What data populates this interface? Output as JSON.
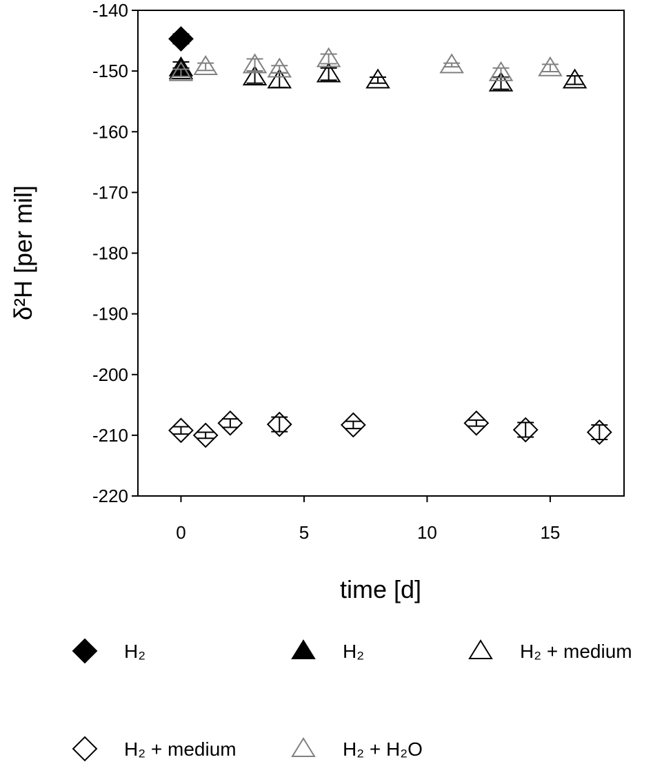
{
  "chart_data": {
    "type": "scatter",
    "xlabel": "time [d]",
    "ylabel": "δ²H [per mil]",
    "xlim": [
      -1.75,
      18
    ],
    "ylim": [
      -220,
      -140
    ],
    "xticks": [
      0,
      5,
      10,
      15
    ],
    "yticks": [
      -220,
      -210,
      -200,
      -190,
      -180,
      -170,
      -160,
      -150,
      -140
    ],
    "series": [
      {
        "name": "H₂",
        "color": "#000000",
        "marker": "diamond",
        "filled": true,
        "x": [
          0
        ],
        "values": [
          -144.7
        ],
        "errors": [
          0.8
        ]
      },
      {
        "name": "H₂",
        "color": "#000000",
        "marker": "triangle",
        "filled": true,
        "x": [
          0
        ],
        "values": [
          -149.5
        ],
        "errors": [
          1
        ]
      },
      {
        "name": "H₂ + medium",
        "color": "#000000",
        "marker": "triangle",
        "filled": false,
        "x": [
          0,
          3,
          4,
          6,
          8,
          13,
          16
        ],
        "values": [
          -150,
          -151,
          -151.5,
          -150.5,
          -151.5,
          -152,
          -151.5
        ],
        "errors": [
          0.5,
          1,
          1.2,
          1,
          0.5,
          1,
          0.7
        ]
      },
      {
        "name": "H₂ + medium",
        "color": "#000000",
        "marker": "diamond",
        "filled": false,
        "x": [
          0,
          1,
          2,
          4,
          7,
          12,
          14,
          17
        ],
        "values": [
          -209.2,
          -210,
          -208,
          -208.2,
          -208.3,
          -208,
          -209.1,
          -209.5
        ],
        "errors": [
          0.6,
          0.5,
          0.7,
          1.2,
          0.6,
          0.5,
          1.2,
          1.2
        ]
      },
      {
        "name": "H₂ + H₂O",
        "color": "#808080",
        "marker": "triangle",
        "filled": false,
        "x": [
          0,
          1,
          3,
          4,
          6,
          11,
          13,
          15
        ],
        "values": [
          -150.3,
          -149.3,
          -149,
          -149.7,
          -148,
          -149,
          -150.3,
          -149.5
        ],
        "errors": [
          0.6,
          0.6,
          1,
          0.6,
          0.8,
          0.3,
          0.8,
          0.6
        ]
      }
    ]
  }
}
